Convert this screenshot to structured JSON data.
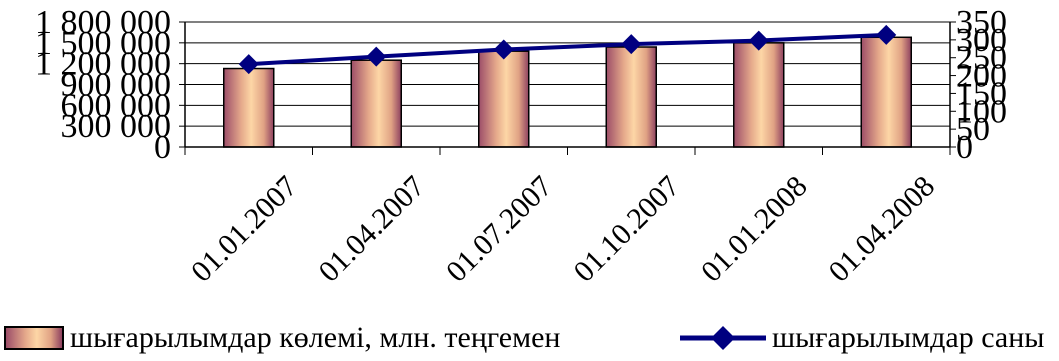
{
  "chart_data": {
    "type": "bar-line",
    "categories": [
      "01.01.2007",
      "01.04.2007",
      "01.07.2007",
      "01.10.2007",
      "01.01.2008",
      "01.04.2008"
    ],
    "series": [
      {
        "name": "шығарылымдар көлемі, млн. теңгемен",
        "type": "bar",
        "axis": "left",
        "values": [
          1130000,
          1250000,
          1380000,
          1440000,
          1500000,
          1580000
        ]
      },
      {
        "name": "шығарылымдар саны",
        "type": "line",
        "axis": "right",
        "values": [
          232,
          253,
          273,
          288,
          298,
          314
        ]
      }
    ],
    "y_left": {
      "ylim": [
        0,
        1800000
      ],
      "ticks": [
        "0",
        "300 000",
        "600 000",
        "900 000",
        "1 200 000",
        "1 500 000",
        "1 800 000"
      ]
    },
    "y_right": {
      "ylim": [
        0,
        350
      ],
      "ticks": [
        "0",
        "50",
        "100",
        "150",
        "200",
        "250",
        "300",
        "350"
      ]
    },
    "grid": "horizontal",
    "legend_position": "bottom"
  },
  "colors": {
    "line": "#000080",
    "bar_light": "#fdd6a6",
    "bar_dark": "#8e4160",
    "grid": "#000000"
  }
}
